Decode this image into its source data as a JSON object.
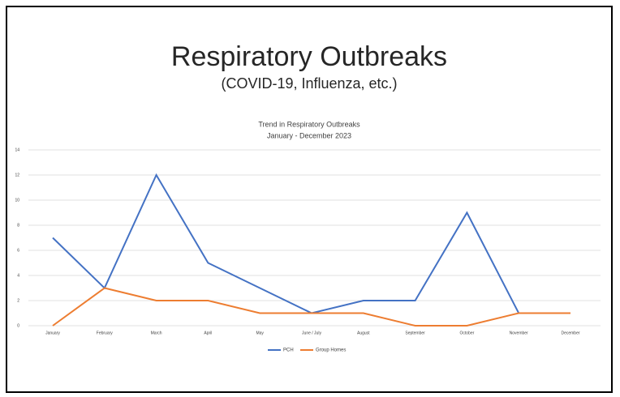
{
  "slide": {
    "title": "Respiratory Outbreaks",
    "subtitle": "(COVID-19, Influenza, etc.)"
  },
  "chart_data": {
    "type": "line",
    "title": "Trend in Respiratory Outbreaks",
    "subtitle": "January - December 2023",
    "categories": [
      "January",
      "February",
      "March",
      "April",
      "May",
      "June / July",
      "August",
      "September",
      "October",
      "November",
      "December"
    ],
    "series": [
      {
        "name": "PCH",
        "color": "#4472c4",
        "values": [
          7,
          3,
          12,
          5,
          3,
          1,
          2,
          2,
          9,
          1,
          1
        ]
      },
      {
        "name": "Group Homes",
        "color": "#ed7d31",
        "values": [
          0,
          3,
          2,
          2,
          1,
          1,
          1,
          0,
          0,
          1,
          1
        ]
      }
    ],
    "ylim": [
      0,
      14
    ],
    "yticks": [
      0,
      2,
      4,
      6,
      8,
      10,
      12,
      14
    ],
    "grid": true,
    "legend": "bottom"
  }
}
